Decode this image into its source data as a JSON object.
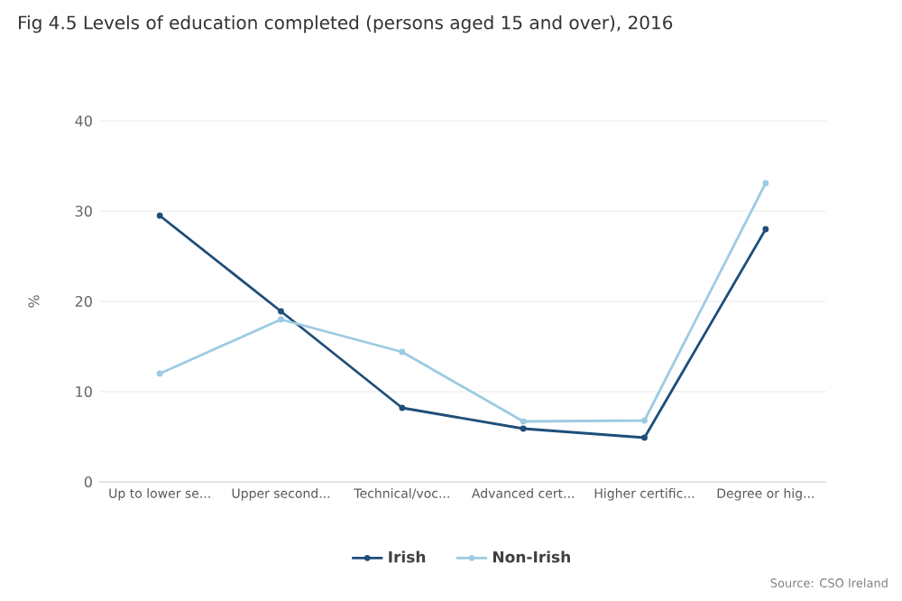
{
  "chart_data": {
    "type": "line",
    "title": "Fig 4.5 Levels of education completed (persons aged 15 and over), 2016",
    "ylabel": "%",
    "categories": [
      "Up to lower se...",
      "Upper second...",
      "Technical/voc...",
      "Advanced cert...",
      "Higher certific...",
      "Degree or hig..."
    ],
    "series": [
      {
        "name": "Irish",
        "color": "#1f4e79",
        "values": [
          29.5,
          18.9,
          8.2,
          5.9,
          4.9,
          28.0
        ]
      },
      {
        "name": "Non-Irish",
        "color": "#9dcbe3",
        "values": [
          12.0,
          18.0,
          14.4,
          6.7,
          6.8,
          33.1
        ]
      }
    ],
    "ylim": [
      0,
      40
    ],
    "yticks": [
      0,
      10,
      20,
      30,
      40
    ],
    "grid": "y",
    "legend": "bottom",
    "marker": "circle",
    "annotations": [
      "Source: CSO Ireland"
    ]
  }
}
